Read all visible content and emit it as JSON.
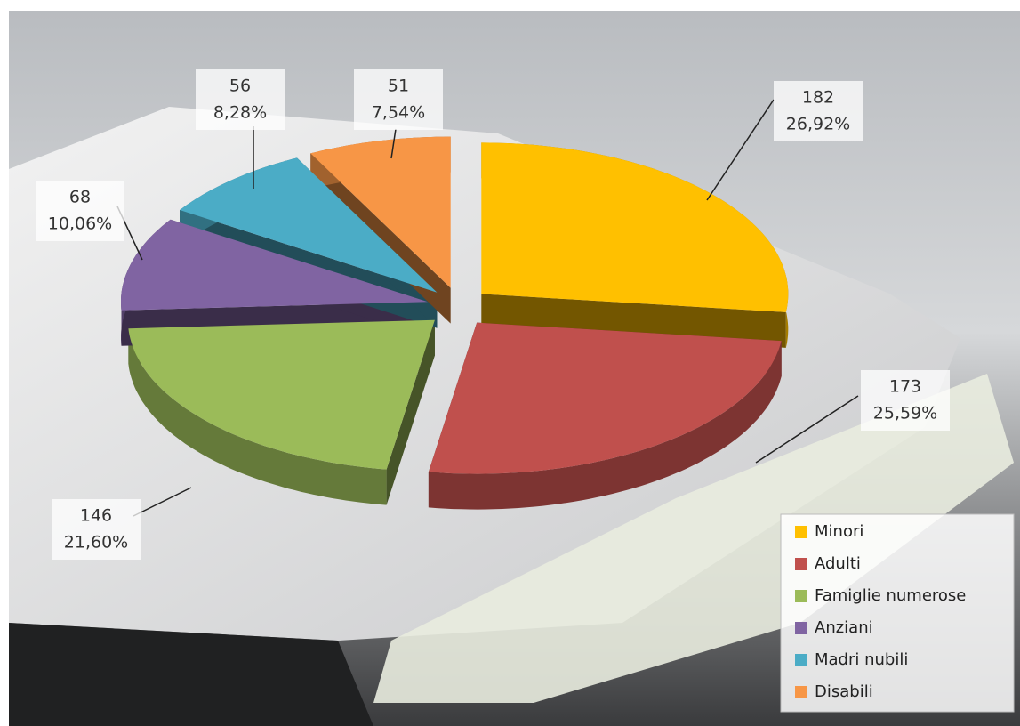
{
  "chart_data": {
    "type": "pie",
    "categories": [
      "Minori",
      "Adulti",
      "Famiglie numerose",
      "Anziani",
      "Madri nubili",
      "Disabili"
    ],
    "values": [
      182,
      173,
      146,
      68,
      56,
      51
    ],
    "percent_labels": [
      {
        "value": 26.92,
        "label": "26,92%"
      },
      {
        "value": 25.59,
        "label": "25,59%"
      },
      {
        "value": 21.6,
        "label": "21,60%"
      },
      {
        "value": 10.06,
        "label": "10,06%"
      },
      {
        "value": 8.28,
        "label": "8,28%"
      },
      {
        "value": 7.54,
        "label": "7,54%"
      }
    ],
    "colors": [
      "#ffc000",
      "#c0504d",
      "#9bbb59",
      "#8064a2",
      "#4bacc6",
      "#f79646"
    ],
    "legend": "bottom-right"
  }
}
